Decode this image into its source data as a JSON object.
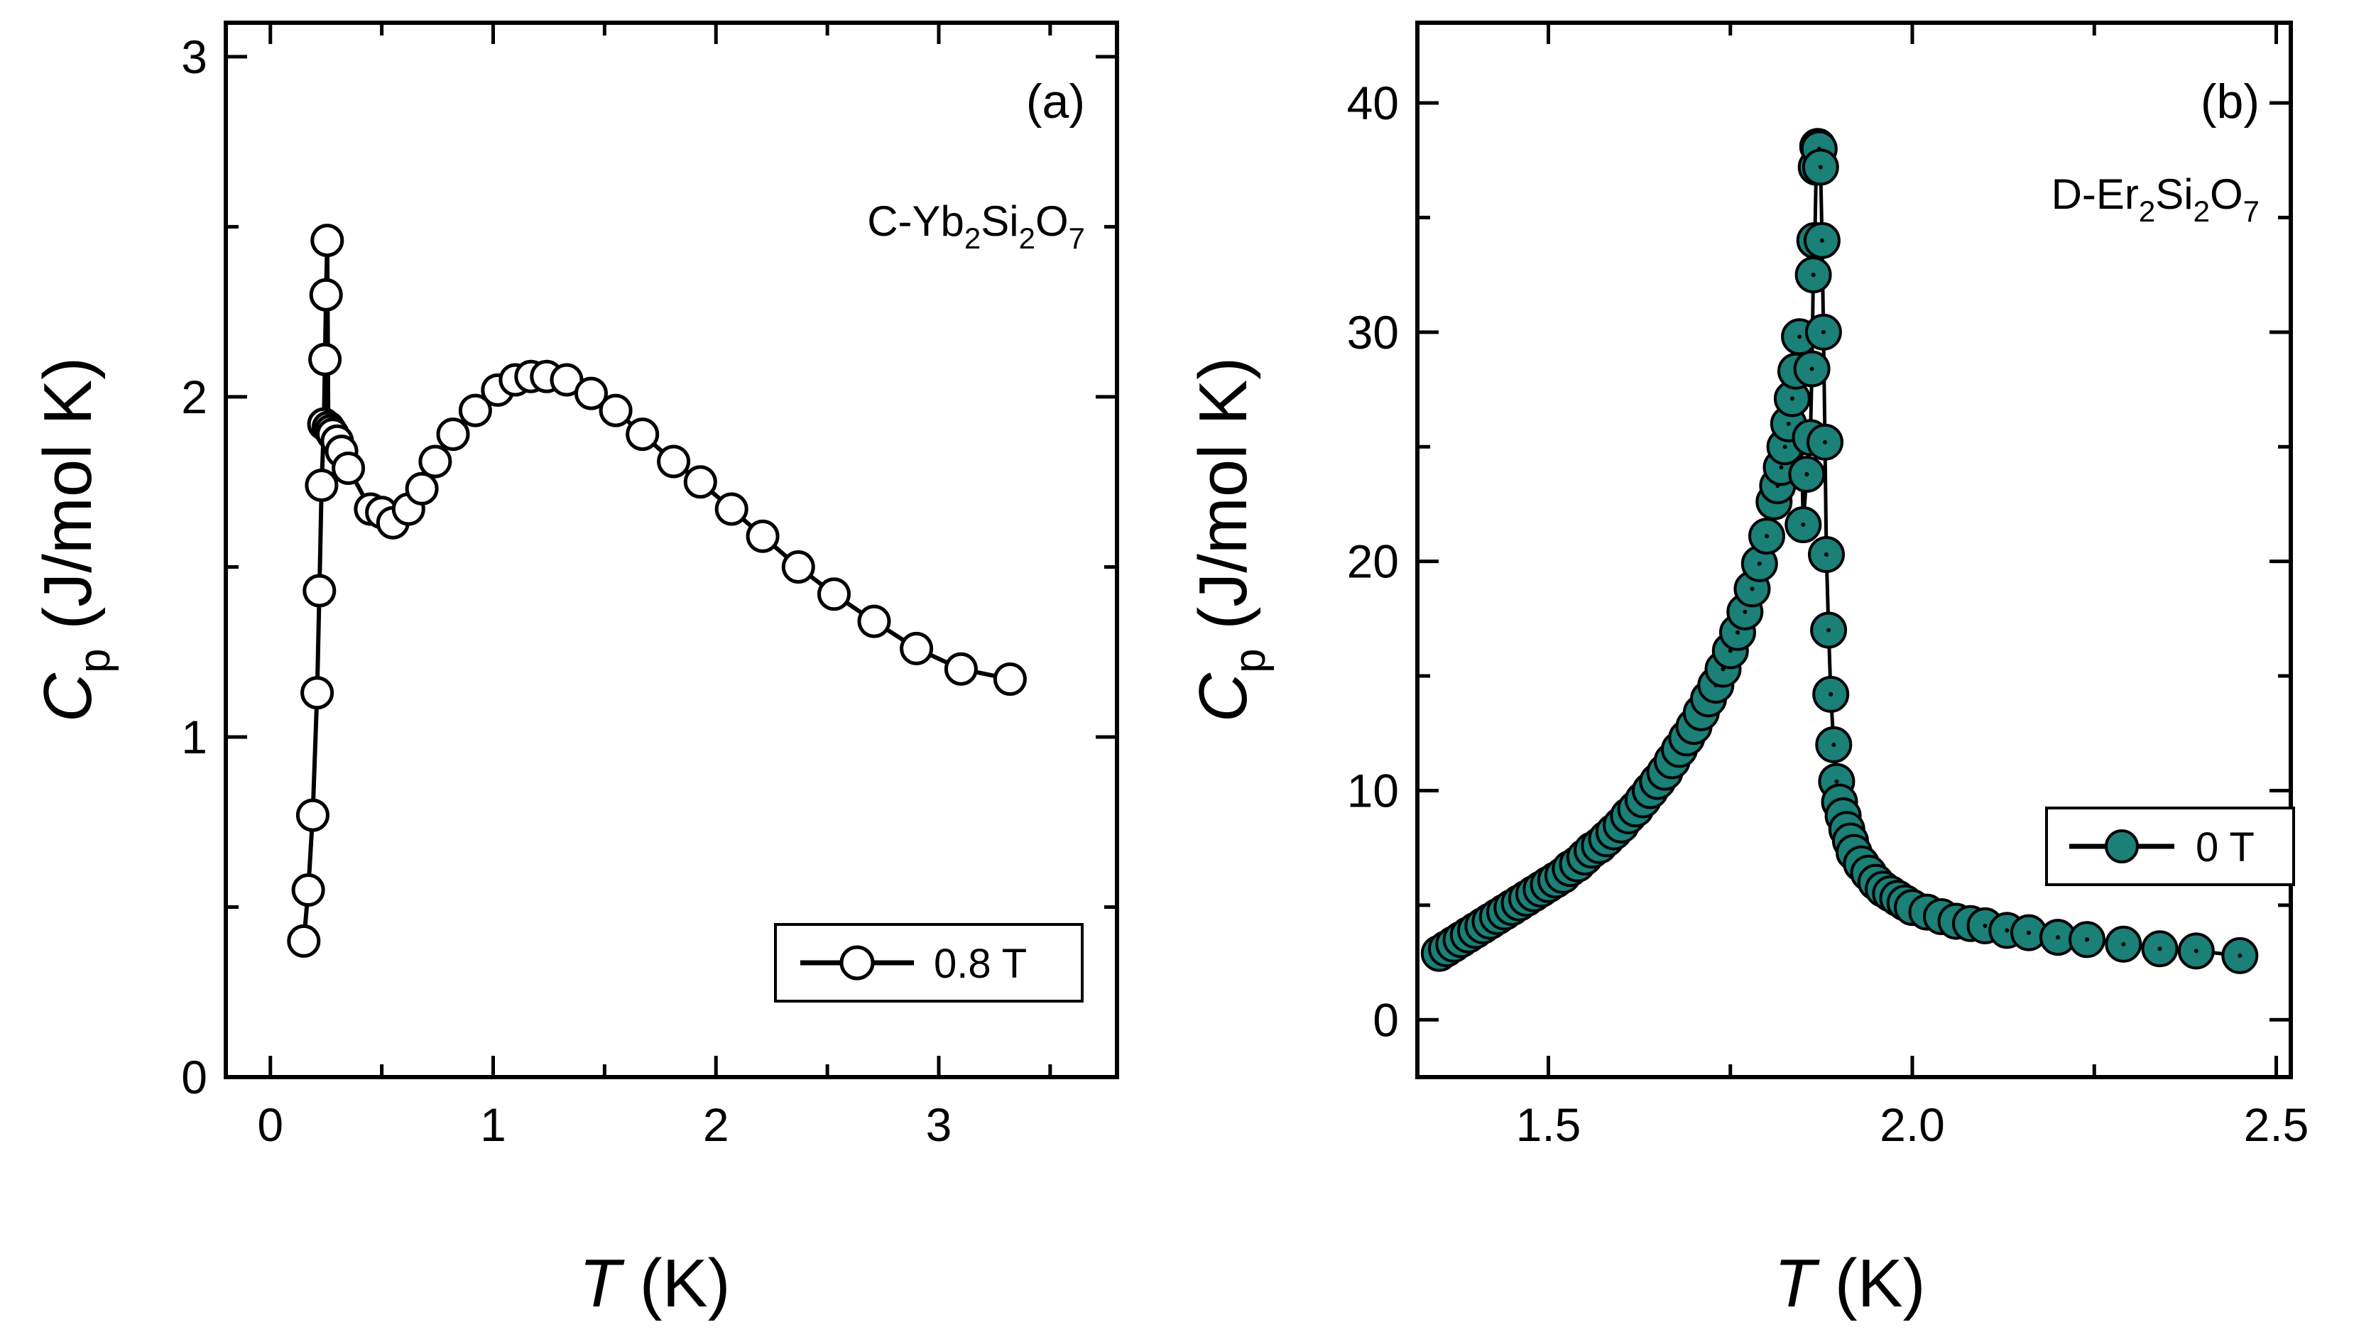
{
  "chart_data": [
    {
      "type": "scatter",
      "panel_label": "(a)",
      "compound": {
        "prefix": "C-Yb",
        "s1": "2",
        "mid": "Si",
        "s2": "2",
        "end": "O",
        "s3": "7"
      },
      "xlabel": {
        "var": "T",
        "unit": " (K)"
      },
      "ylabel": {
        "var": "C",
        "sub": "p",
        "unit": " (J/mol K)"
      },
      "xlim": [
        -0.2,
        3.8
      ],
      "ylim": [
        0,
        3.1
      ],
      "xticks": [
        0,
        1,
        2,
        3
      ],
      "yticks": [
        0,
        1,
        2,
        3
      ],
      "legend": "top-right-inside-bottom",
      "series": [
        {
          "name": "0.8 T",
          "marker": "open-circle",
          "marker_color": "#ffffff",
          "x": [
            0.15,
            0.17,
            0.19,
            0.21,
            0.22,
            0.23,
            0.24,
            0.245,
            0.25,
            0.255,
            0.26,
            0.27,
            0.28,
            0.3,
            0.32,
            0.35,
            0.45,
            0.5,
            0.55,
            0.62,
            0.68,
            0.74,
            0.82,
            0.92,
            1.02,
            1.1,
            1.17,
            1.24,
            1.33,
            1.44,
            1.55,
            1.67,
            1.81,
            1.93,
            2.07,
            2.21,
            2.37,
            2.53,
            2.71,
            2.9,
            3.1,
            3.32
          ],
          "y": [
            0.4,
            0.55,
            0.77,
            1.13,
            1.43,
            1.74,
            1.92,
            2.11,
            2.3,
            2.46,
            1.91,
            1.9,
            1.89,
            1.87,
            1.84,
            1.79,
            1.67,
            1.66,
            1.63,
            1.67,
            1.73,
            1.81,
            1.89,
            1.96,
            2.02,
            2.05,
            2.06,
            2.06,
            2.05,
            2.01,
            1.96,
            1.89,
            1.81,
            1.75,
            1.67,
            1.59,
            1.5,
            1.42,
            1.34,
            1.26,
            1.2,
            1.17
          ]
        }
      ]
    },
    {
      "type": "scatter",
      "panel_label": "(b)",
      "compound": {
        "prefix": "D-Er",
        "s1": "2",
        "mid": "Si",
        "s2": "2",
        "end": "O",
        "s3": "7"
      },
      "xlabel": {
        "var": "T",
        "unit": " (K)"
      },
      "ylabel": {
        "var": "C",
        "sub": "p",
        "unit": " (J/mol K)"
      },
      "xlim": [
        1.32,
        2.52
      ],
      "ylim": [
        -2.5,
        43.5
      ],
      "xticks": [
        1.5,
        2.0,
        2.5
      ],
      "xtick_labels": [
        "1.5",
        "2.0",
        "2.5"
      ],
      "yticks": [
        0,
        10,
        20,
        30,
        40
      ],
      "legend": "right-inside-bottom",
      "series": [
        {
          "name": "0 T",
          "marker": "filled-circle",
          "marker_color": "#1a8078",
          "x": [
            1.35,
            1.36,
            1.37,
            1.38,
            1.39,
            1.4,
            1.41,
            1.42,
            1.43,
            1.44,
            1.45,
            1.46,
            1.47,
            1.48,
            1.49,
            1.5,
            1.51,
            1.52,
            1.53,
            1.54,
            1.55,
            1.56,
            1.57,
            1.58,
            1.59,
            1.6,
            1.61,
            1.62,
            1.63,
            1.64,
            1.65,
            1.66,
            1.67,
            1.68,
            1.69,
            1.7,
            1.71,
            1.72,
            1.73,
            1.74,
            1.75,
            1.76,
            1.77,
            1.78,
            1.79,
            1.8,
            1.81,
            1.815,
            1.82,
            1.825,
            1.83,
            1.835,
            1.84,
            1.845,
            1.85,
            1.855,
            1.86,
            1.862,
            1.864,
            1.866,
            1.868,
            1.87,
            1.872,
            1.874,
            1.876,
            1.878,
            1.88,
            1.882,
            1.885,
            1.888,
            1.892,
            1.896,
            1.9,
            1.905,
            1.91,
            1.915,
            1.92,
            1.93,
            1.94,
            1.95,
            1.96,
            1.97,
            1.98,
            1.99,
            2.0,
            2.02,
            2.04,
            2.06,
            2.08,
            2.1,
            2.13,
            2.16,
            2.2,
            2.24,
            2.29,
            2.34,
            2.39,
            2.45
          ],
          "y": [
            2.9,
            3.1,
            3.3,
            3.5,
            3.7,
            3.9,
            4.1,
            4.3,
            4.5,
            4.7,
            4.9,
            5.1,
            5.3,
            5.5,
            5.7,
            5.9,
            6.1,
            6.3,
            6.6,
            6.8,
            7.1,
            7.4,
            7.6,
            7.9,
            8.2,
            8.5,
            8.9,
            9.2,
            9.6,
            10.0,
            10.4,
            10.8,
            11.3,
            11.8,
            12.3,
            12.8,
            13.4,
            14.0,
            14.6,
            15.3,
            16.1,
            16.9,
            17.8,
            18.8,
            19.9,
            21.1,
            22.6,
            23.3,
            24.1,
            25.0,
            26.0,
            27.1,
            28.3,
            29.8,
            21.6,
            23.8,
            25.4,
            28.4,
            32.5,
            34.0,
            37.2,
            38.1,
            38.0,
            37.2,
            34.0,
            30.0,
            25.2,
            20.3,
            17.0,
            14.2,
            12.0,
            10.4,
            9.5,
            8.9,
            8.3,
            7.8,
            7.3,
            6.8,
            6.4,
            6.0,
            5.7,
            5.5,
            5.3,
            5.1,
            4.9,
            4.7,
            4.5,
            4.3,
            4.2,
            4.1,
            3.9,
            3.8,
            3.6,
            3.5,
            3.3,
            3.1,
            3.0,
            2.8
          ]
        }
      ]
    }
  ]
}
